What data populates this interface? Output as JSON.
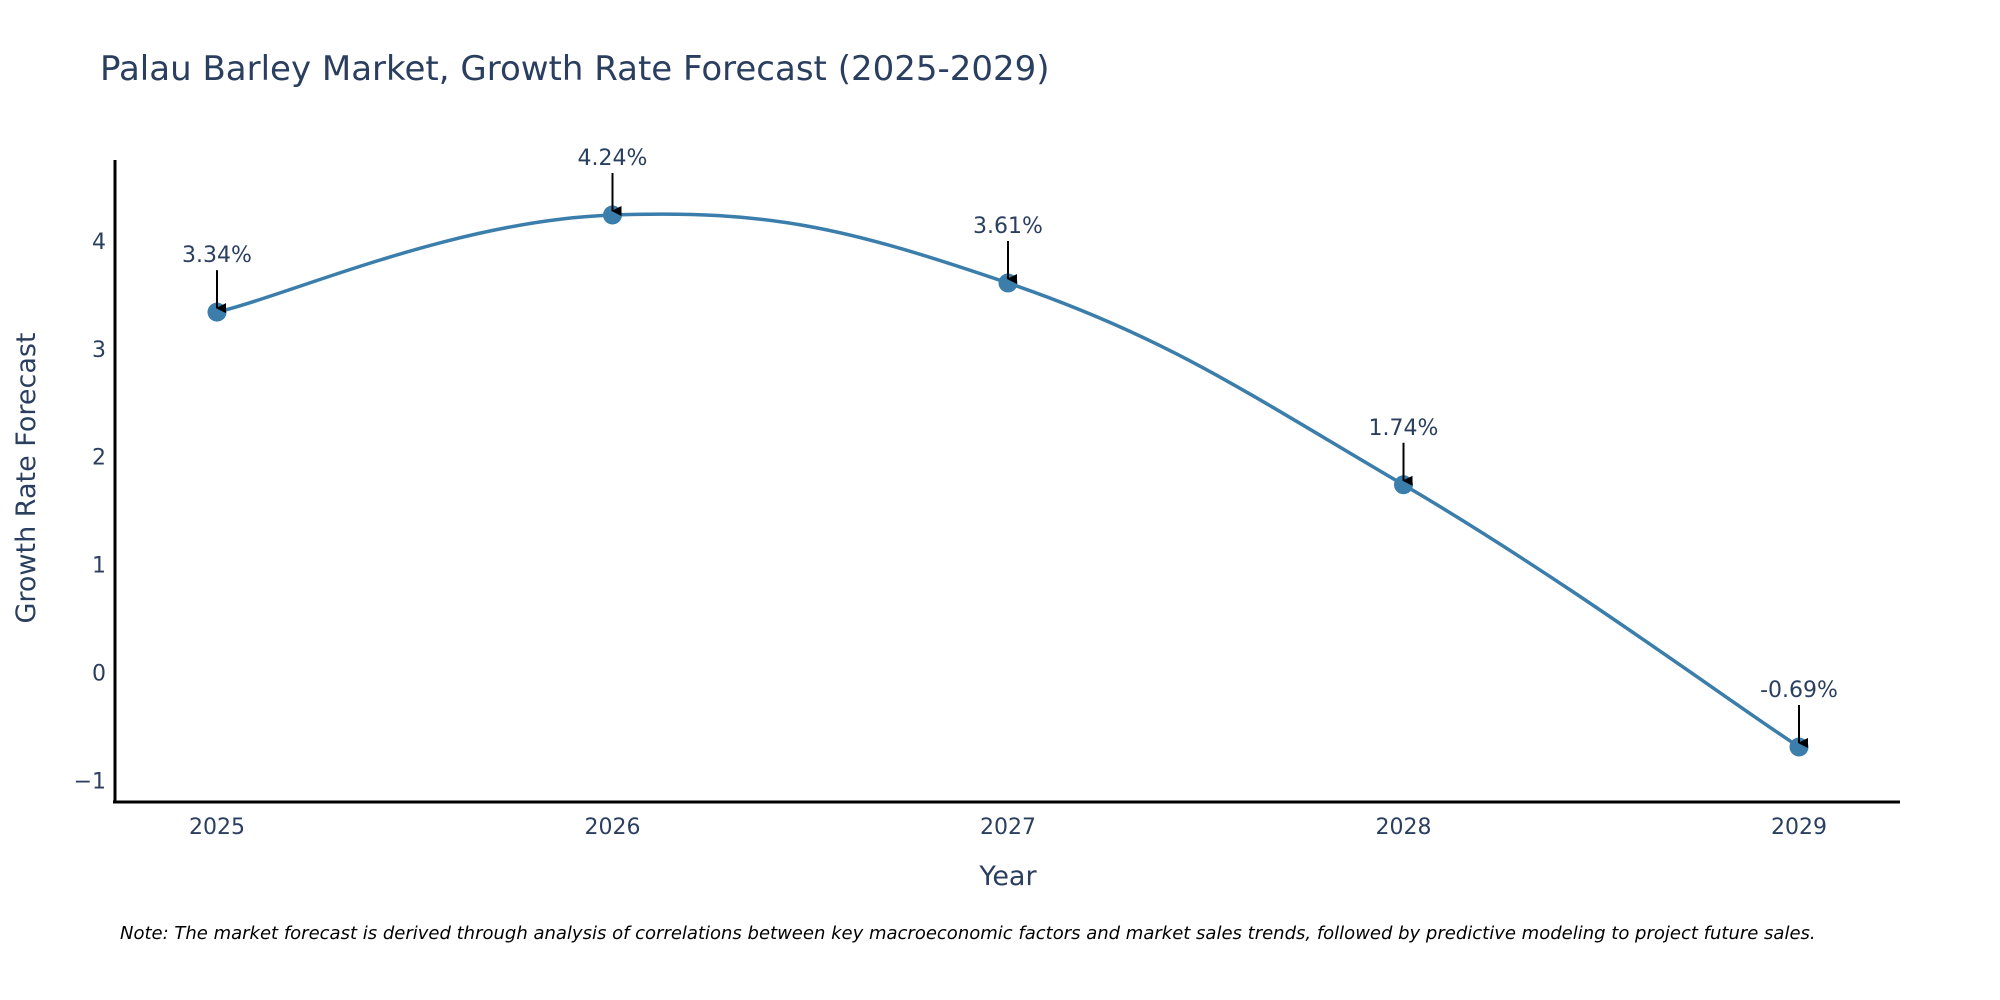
{
  "chart_data": {
    "type": "line",
    "title": "Palau Barley Market, Growth Rate Forecast (2025-2029)",
    "xlabel": "Year",
    "ylabel": "Growth Rate Forecast",
    "categories": [
      "2025",
      "2026",
      "2027",
      "2028",
      "2029"
    ],
    "series": [
      {
        "name": "Growth Rate Forecast",
        "values": [
          3.34,
          4.24,
          3.61,
          1.74,
          -0.69
        ],
        "labels": [
          "3.34%",
          "4.24%",
          "3.61%",
          "1.74%",
          "-0.69%"
        ]
      }
    ],
    "yticks": [
      -1,
      0,
      1,
      2,
      3,
      4
    ],
    "ytick_labels": [
      "−1",
      "0",
      "1",
      "2",
      "3",
      "4"
    ],
    "ylim": [
      -1.2,
      4.75
    ],
    "grid": false,
    "line_shape": "spline",
    "colors": {
      "line": "#3b7dab",
      "marker": "#3b7dab",
      "axis": "#000000",
      "text": "#2a3f5f",
      "arrow": "#000000"
    },
    "note": "Note: The market forecast is derived through analysis of correlations between key macroeconomic factors and market sales trends, followed by predictive modeling to project future sales."
  }
}
